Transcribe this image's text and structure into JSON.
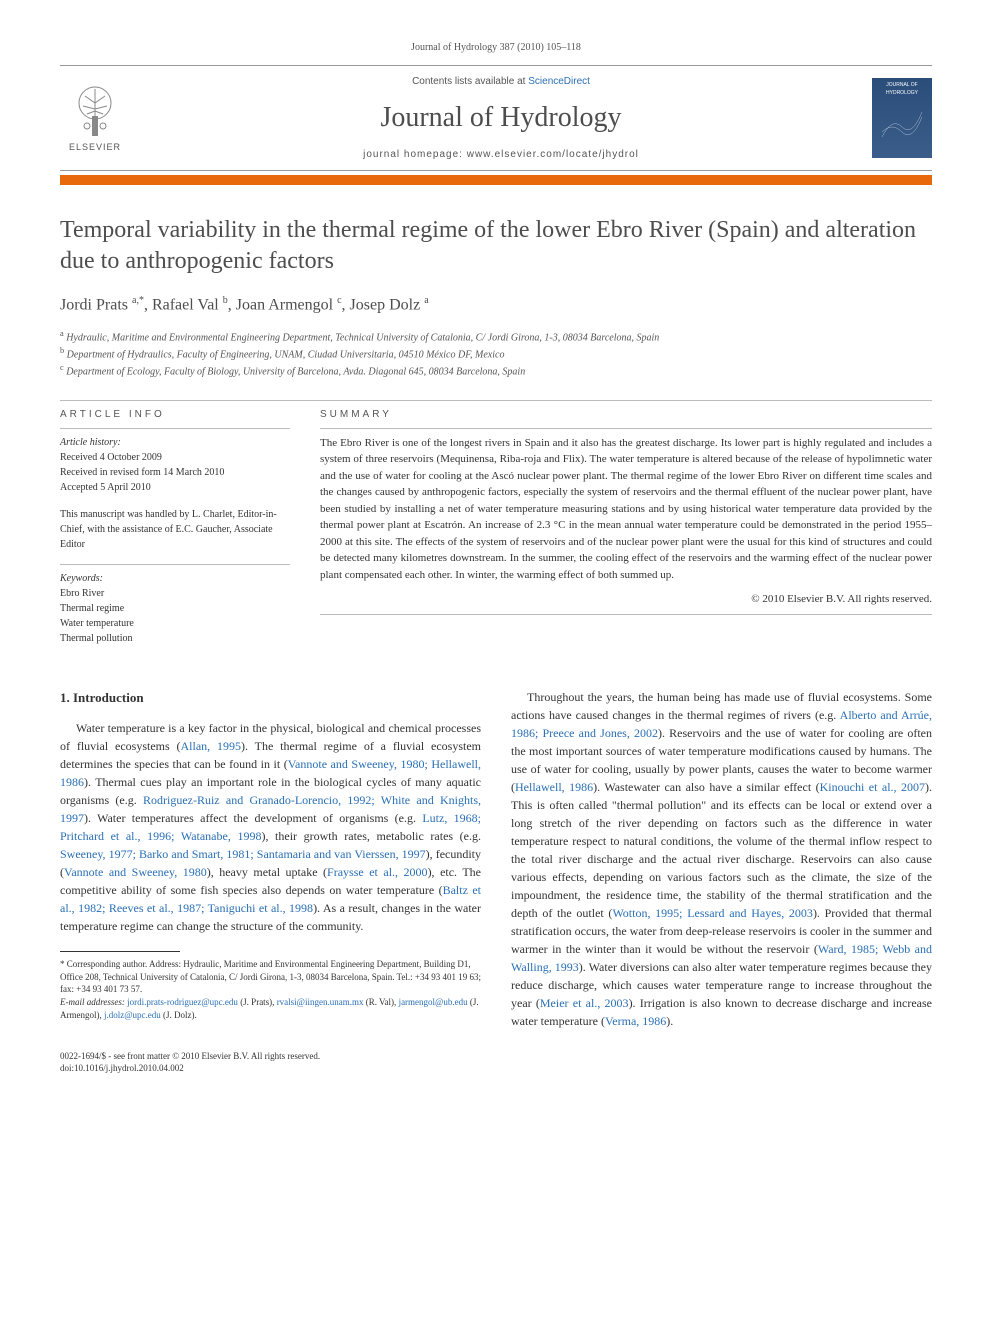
{
  "header": {
    "citation": "Journal of Hydrology 387 (2010) 105–118",
    "contents_prefix": "Contents lists available at ",
    "contents_link": "ScienceDirect",
    "journal_title": "Journal of Hydrology",
    "homepage_prefix": "journal homepage: ",
    "homepage_url": "www.elsevier.com/locate/jhydrol",
    "elsevier_label": "ELSEVIER",
    "cover_label": "JOURNAL OF HYDROLOGY"
  },
  "colors": {
    "orange_bar": "#e8690b",
    "link": "#2a6fb5",
    "text": "#333333",
    "muted": "#555555",
    "title_grey": "#4d4d4d",
    "cover_bg_top": "#2a4d7a",
    "cover_bg_bottom": "#3a5d8a"
  },
  "article": {
    "title": "Temporal variability in the thermal regime of the lower Ebro River (Spain) and alteration due to anthropogenic factors",
    "authors_html": "Jordi Prats <sup>a,*</sup>, Rafael Val <sup>b</sup>, Joan Armengol <sup>c</sup>, Josep Dolz <sup>a</sup>",
    "affiliations": [
      "<sup>a</sup> Hydraulic, Maritime and Environmental Engineering Department, Technical University of Catalonia, C/ Jordi Girona, 1-3, 08034 Barcelona, Spain",
      "<sup>b</sup> Department of Hydraulics, Faculty of Engineering, UNAM, Ciudad Universitaria, 04510 México DF, Mexico",
      "<sup>c</sup> Department of Ecology, Faculty of Biology, University of Barcelona, Avda. Diagonal 645, 08034 Barcelona, Spain"
    ]
  },
  "article_info": {
    "heading": "ARTICLE INFO",
    "history_label": "Article history:",
    "history": [
      "Received 4 October 2009",
      "Received in revised form 14 March 2010",
      "Accepted 5 April 2010"
    ],
    "editor_note": "This manuscript was handled by L. Charlet, Editor-in-Chief, with the assistance of E.C. Gaucher, Associate Editor",
    "keywords_label": "Keywords:",
    "keywords": [
      "Ebro River",
      "Thermal regime",
      "Water temperature",
      "Thermal pollution"
    ]
  },
  "summary": {
    "heading": "SUMMARY",
    "text": "The Ebro River is one of the longest rivers in Spain and it also has the greatest discharge. Its lower part is highly regulated and includes a system of three reservoirs (Mequinensa, Riba-roja and Flix). The water temperature is altered because of the release of hypolimnetic water and the use of water for cooling at the Ascó nuclear power plant. The thermal regime of the lower Ebro River on different time scales and the changes caused by anthropogenic factors, especially the system of reservoirs and the thermal effluent of the nuclear power plant, have been studied by installing a net of water temperature measuring stations and by using historical water temperature data provided by the thermal power plant at Escatrón. An increase of 2.3 °C in the mean annual water temperature could be demonstrated in the period 1955–2000 at this site. The effects of the system of reservoirs and of the nuclear power plant were the usual for this kind of structures and could be detected many kilometres downstream. In the summer, the cooling effect of the reservoirs and the warming effect of the nuclear power plant compensated each other. In winter, the warming effect of both summed up.",
    "copyright": "© 2010 Elsevier B.V. All rights reserved."
  },
  "body": {
    "intro_heading": "1. Introduction",
    "left_column_html": "Water temperature is a key factor in the physical, biological and chemical processes of fluvial ecosystems (<span class='ref-link'>Allan, 1995</span>). The thermal regime of a fluvial ecosystem determines the species that can be found in it (<span class='ref-link'>Vannote and Sweeney, 1980; Hellawell, 1986</span>). Thermal cues play an important role in the biological cycles of many aquatic organisms (e.g. <span class='ref-link'>Rodriguez-Ruiz and Granado-Lorencio, 1992; White and Knights, 1997</span>). Water temperatures affect the development of organisms (e.g. <span class='ref-link'>Lutz, 1968; Pritchard et al., 1996; Watanabe, 1998</span>), their growth rates, metabolic rates (e.g. <span class='ref-link'>Sweeney, 1977; Barko and Smart, 1981; Santamaria and van Vierssen, 1997</span>), fecundity (<span class='ref-link'>Vannote and Sweeney, 1980</span>), heavy metal uptake (<span class='ref-link'>Fraysse et al., 2000</span>), etc. The competitive ability of some fish species also depends on water temperature (<span class='ref-link'>Baltz et al., 1982; Reeves et al., 1987; Taniguchi et al., 1998</span>). As a result, changes in the water temperature regime can change the structure of the community.",
    "right_column_html": "Throughout the years, the human being has made use of fluvial ecosystems. Some actions have caused changes in the thermal regimes of rivers (e.g. <span class='ref-link'>Alberto and Arrúe, 1986; Preece and Jones, 2002</span>). Reservoirs and the use of water for cooling are often the most important sources of water temperature modifications caused by humans. The use of water for cooling, usually by power plants, causes the water to become warmer (<span class='ref-link'>Hellawell, 1986</span>). Wastewater can also have a similar effect (<span class='ref-link'>Kinouchi et al., 2007</span>). This is often called \"thermal pollution\" and its effects can be local or extend over a long stretch of the river depending on factors such as the difference in water temperature respect to natural conditions, the volume of the thermal inflow respect to the total river discharge and the actual river discharge. Reservoirs can also cause various effects, depending on various factors such as the climate, the size of the impoundment, the residence time, the stability of the thermal stratification and the depth of the outlet (<span class='ref-link'>Wotton, 1995; Lessard and Hayes, 2003</span>). Provided that thermal stratification occurs, the water from deep-release reservoirs is cooler in the summer and warmer in the winter than it would be without the reservoir (<span class='ref-link'>Ward, 1985; Webb and Walling, 1993</span>). Water diversions can also alter water temperature regimes because they reduce discharge, which causes water temperature range to increase throughout the year (<span class='ref-link'>Meier et al., 2003</span>). Irrigation is also known to decrease discharge and increase water temperature (<span class='ref-link'>Verma, 1986</span>)."
  },
  "footnotes": {
    "corresponding": "* Corresponding author. Address: Hydraulic, Maritime and Environmental Engineering Department, Building D1, Office 208, Technical University of Catalonia, C/ Jordi Girona, 1-3, 08034 Barcelona, Spain. Tel.: +34 93 401 19 63; fax: +34 93 401 73 57.",
    "email_label": "E-mail addresses:",
    "emails_html": "<a>jordi.prats-rodriguez@upc.edu</a> (J. Prats), <a>rvalsi@iingen.unam.mx</a> (R. Val), <a>jarmengol@ub.edu</a> (J. Armengol), <a>j.dolz@upc.edu</a> (J. Dolz)."
  },
  "footer": {
    "issn_line": "0022-1694/$ - see front matter © 2010 Elsevier B.V. All rights reserved.",
    "doi_line": "doi:10.1016/j.jhydrol.2010.04.002"
  }
}
